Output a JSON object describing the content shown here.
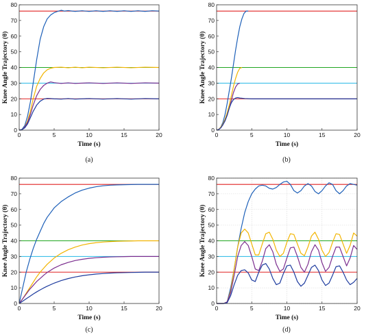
{
  "chart_data": [
    {
      "type": "line",
      "caption": "(a)",
      "xlabel": "Time (s)",
      "ylabel": "Knee Angle Trajectory (θ)",
      "xlim": [
        0,
        20
      ],
      "ylim": [
        0,
        80
      ],
      "xticks": [
        0,
        5,
        10,
        15,
        20
      ],
      "yticks": [
        0,
        10,
        20,
        30,
        40,
        50,
        60,
        70,
        80
      ],
      "grid": false,
      "reference_lines": [
        {
          "y": 76,
          "color": "#e02020"
        },
        {
          "y": 40,
          "color": "#1fa51f"
        },
        {
          "y": 30,
          "color": "#22b7e6"
        },
        {
          "y": 20,
          "color": "#e02020"
        }
      ],
      "series": [
        {
          "color": "#1c5fb8",
          "x": [
            0,
            0.4,
            0.8,
            1.2,
            1.6,
            2.0,
            2.5,
            3.0,
            3.5,
            4.0,
            4.5,
            5.0,
            5.5,
            6.0,
            6.5,
            7,
            8,
            9,
            10,
            11,
            12,
            13,
            14,
            15,
            16,
            17,
            18,
            19,
            20
          ],
          "y": [
            0,
            0.5,
            3,
            9,
            18,
            30,
            45,
            58,
            66,
            71,
            73.5,
            75,
            75.8,
            76.5,
            76,
            76.3,
            75.8,
            76.2,
            75.8,
            76.2,
            75.8,
            76.2,
            75.8,
            76.2,
            75.8,
            76.2,
            75.8,
            76.2,
            76
          ]
        },
        {
          "color": "#f2b400",
          "x": [
            0,
            0.4,
            0.8,
            1.2,
            1.6,
            2.0,
            2.5,
            3.0,
            3.5,
            4.0,
            4.5,
            5,
            6,
            7,
            8,
            9,
            10,
            12,
            14,
            16,
            18,
            20
          ],
          "y": [
            0,
            0.3,
            2,
            6,
            12,
            20,
            28,
            33,
            36.5,
            38.5,
            39.5,
            40,
            40.2,
            39.8,
            40.2,
            39.8,
            40.2,
            39.8,
            40.2,
            39.8,
            40.2,
            40
          ]
        },
        {
          "color": "#7b2d8e",
          "x": [
            0,
            0.4,
            0.8,
            1.2,
            1.6,
            2.0,
            2.5,
            3.0,
            3.5,
            4.0,
            4.5,
            5,
            6,
            7,
            8,
            10,
            12,
            14,
            16,
            18,
            20
          ],
          "y": [
            0,
            0.3,
            2,
            5,
            10,
            16,
            22,
            26,
            28.5,
            30,
            30.8,
            30.3,
            29.8,
            30.2,
            29.8,
            30.2,
            29.8,
            30.2,
            29.8,
            30.2,
            30
          ]
        },
        {
          "color": "#1c3a9e",
          "x": [
            0,
            0.4,
            0.8,
            1.2,
            1.6,
            2.0,
            2.5,
            3.0,
            3.5,
            4.0,
            4.5,
            5,
            6,
            7,
            8,
            10,
            12,
            14,
            16,
            18,
            20
          ],
          "y": [
            0,
            0.3,
            1.5,
            4,
            8,
            12,
            16,
            18.5,
            19.8,
            20.3,
            20.2,
            20,
            19.8,
            20.2,
            19.8,
            20.2,
            19.8,
            20.2,
            19.8,
            20.2,
            20
          ]
        }
      ]
    },
    {
      "type": "line",
      "caption": "(b)",
      "xlabel": "Time (s)",
      "ylabel": "Knee Angle Trajectory (θ)",
      "xlim": [
        0,
        20
      ],
      "ylim": [
        0,
        80
      ],
      "xticks": [
        0,
        5,
        10,
        15,
        20
      ],
      "yticks": [
        0,
        10,
        20,
        30,
        40,
        50,
        60,
        70,
        80
      ],
      "grid": false,
      "reference_lines": [
        {
          "y": 76,
          "color": "#e02020"
        },
        {
          "y": 40,
          "color": "#1fa51f"
        },
        {
          "y": 30,
          "color": "#22b7e6"
        },
        {
          "y": 20,
          "color": "#e02020"
        }
      ],
      "series": [
        {
          "color": "#1c5fb8",
          "x": [
            0,
            0.3,
            0.6,
            0.9,
            1.2,
            1.5,
            1.8,
            2.1,
            2.4,
            2.7,
            3.0,
            3.3,
            3.6,
            3.9,
            4.2,
            4.5
          ],
          "y": [
            0,
            0.5,
            2,
            5,
            10,
            17,
            25,
            33,
            42,
            51,
            59,
            66,
            71,
            74.5,
            76,
            76
          ]
        },
        {
          "color": "#f2b400",
          "x": [
            0,
            0.3,
            0.6,
            0.9,
            1.2,
            1.5,
            1.8,
            2.1,
            2.4,
            2.7,
            3.0,
            3.3,
            3.6
          ],
          "y": [
            0,
            0.5,
            2,
            4,
            7,
            11,
            16,
            22,
            28,
            33,
            37,
            39.5,
            40
          ]
        },
        {
          "color": "#7b2d8e",
          "x": [
            0,
            0.3,
            0.6,
            0.9,
            1.2,
            1.5,
            1.8,
            2.1,
            2.4,
            2.7,
            3.0,
            3.3
          ],
          "y": [
            0,
            0.4,
            1.5,
            3.5,
            6,
            9.5,
            14,
            19,
            24,
            27.5,
            29.5,
            30
          ]
        },
        {
          "color": "#1c3a9e",
          "x": [
            0,
            0.3,
            0.6,
            0.9,
            1.2,
            1.5,
            1.8,
            2.1,
            2.4,
            2.7,
            3.0,
            3.3,
            4,
            5,
            6,
            8,
            10,
            12,
            14,
            16,
            18,
            20
          ],
          "y": [
            0,
            0.4,
            1.5,
            3.5,
            6,
            9.5,
            14,
            17.5,
            19.5,
            20.5,
            20.8,
            20.5,
            20.2,
            20,
            20,
            20,
            20,
            20,
            20,
            20,
            20,
            20
          ]
        }
      ]
    },
    {
      "type": "line",
      "caption": "(c)",
      "xlabel": "Time (s)",
      "ylabel": "Knee Angle Trajectory (θ)",
      "xlim": [
        0,
        20
      ],
      "ylim": [
        0,
        80
      ],
      "xticks": [
        0,
        5,
        10,
        15,
        20
      ],
      "yticks": [
        0,
        10,
        20,
        30,
        40,
        50,
        60,
        70,
        80
      ],
      "grid": false,
      "reference_lines": [
        {
          "y": 76,
          "color": "#e02020"
        },
        {
          "y": 40,
          "color": "#1fa51f"
        },
        {
          "y": 30,
          "color": "#22b7e6"
        },
        {
          "y": 20,
          "color": "#e02020"
        }
      ],
      "series": [
        {
          "color": "#1c5fb8",
          "x": [
            0,
            0.5,
            1,
            1.5,
            2,
            2.5,
            3,
            3.5,
            4,
            5,
            6,
            7,
            8,
            9,
            10,
            11,
            12,
            13,
            14,
            15,
            16,
            17,
            18,
            19,
            20
          ],
          "y": [
            0,
            10,
            20,
            28,
            35,
            41,
            46,
            51,
            55,
            61,
            65,
            68,
            70.5,
            72.3,
            73.6,
            74.5,
            75.1,
            75.5,
            75.7,
            75.8,
            75.9,
            76,
            76,
            76,
            76
          ]
        },
        {
          "color": "#f2b400",
          "x": [
            0,
            0.5,
            1,
            1.5,
            2,
            2.5,
            3,
            3.5,
            4,
            5,
            6,
            7,
            8,
            9,
            10,
            11,
            12,
            13,
            14,
            15,
            16,
            17,
            18,
            19,
            20
          ],
          "y": [
            0,
            3,
            6.5,
            10,
            13.5,
            17,
            20,
            22.5,
            25,
            29,
            32,
            34.3,
            36,
            37.3,
            38.2,
            38.8,
            39.2,
            39.5,
            39.7,
            39.8,
            39.9,
            40,
            40,
            40,
            40
          ]
        },
        {
          "color": "#7b2d8e",
          "x": [
            0,
            0.5,
            1,
            1.5,
            2,
            2.5,
            3,
            3.5,
            4,
            5,
            6,
            7,
            8,
            9,
            10,
            11,
            12,
            13,
            14,
            15,
            16,
            17,
            18,
            19,
            20
          ],
          "y": [
            0,
            3,
            6,
            9,
            11.5,
            14,
            16,
            18,
            19.8,
            22.6,
            24.7,
            26.2,
            27.4,
            28.2,
            28.8,
            29.2,
            29.5,
            29.7,
            29.8,
            29.9,
            30,
            30,
            30,
            30,
            30
          ]
        },
        {
          "color": "#1c3a9e",
          "x": [
            0,
            0.5,
            1,
            1.5,
            2,
            2.5,
            3,
            3.5,
            4,
            5,
            6,
            7,
            8,
            9,
            10,
            11,
            12,
            13,
            14,
            15,
            16,
            17,
            18,
            19,
            20
          ],
          "y": [
            0,
            1.5,
            3,
            4.5,
            6,
            7.4,
            8.7,
            9.9,
            11,
            13,
            14.6,
            15.9,
            16.9,
            17.7,
            18.3,
            18.8,
            19.1,
            19.4,
            19.6,
            19.7,
            19.8,
            19.9,
            20,
            20,
            20
          ]
        }
      ]
    },
    {
      "type": "line",
      "caption": "(d)",
      "xlabel": "Time (s)",
      "ylabel": "Knee Angle Trajectory (θ)",
      "xlim": [
        0,
        20
      ],
      "ylim": [
        0,
        80
      ],
      "xticks": [
        0,
        5,
        10,
        15,
        20
      ],
      "yticks": [
        0,
        10,
        20,
        30,
        40,
        50,
        60,
        70,
        80
      ],
      "grid": true,
      "reference_lines": [
        {
          "y": 76,
          "color": "#e02020"
        },
        {
          "y": 40,
          "color": "#1fa51f"
        },
        {
          "y": 30,
          "color": "#22b7e6"
        },
        {
          "y": 20,
          "color": "#e02020"
        }
      ],
      "series": [
        {
          "color": "#1c5fb8",
          "x": [
            0,
            1,
            1.5,
            2,
            2.5,
            3,
            3.5,
            4,
            4.5,
            5,
            5.5,
            6,
            6.5,
            7,
            7.5,
            8,
            8.5,
            9,
            9.5,
            10,
            10.5,
            11,
            11.5,
            12,
            12.5,
            13,
            13.5,
            14,
            14.5,
            15,
            15.5,
            16,
            16.5,
            17,
            17.5,
            18,
            18.5,
            19,
            19.5,
            20
          ],
          "y": [
            0,
            0,
            1,
            10,
            22,
            36,
            48,
            58,
            65,
            70,
            73,
            75,
            75.5,
            75,
            73.5,
            73,
            74,
            76,
            77.5,
            78,
            76,
            72,
            70.5,
            72,
            75,
            76.5,
            75,
            71.5,
            70,
            72,
            75,
            77,
            76,
            72,
            70,
            72,
            75,
            76.5,
            76,
            75.5
          ]
        },
        {
          "color": "#f2b400",
          "x": [
            0,
            1,
            1.5,
            2,
            2.5,
            3,
            3.5,
            4,
            4.5,
            5,
            5.5,
            6,
            6.5,
            7,
            7.5,
            8,
            8.5,
            9,
            9.5,
            10,
            10.5,
            11,
            11.5,
            12,
            12.5,
            13,
            13.5,
            14,
            14.5,
            15,
            15.5,
            16,
            16.5,
            17,
            17.5,
            18,
            18.5,
            19,
            19.5,
            20
          ],
          "y": [
            0,
            0,
            1,
            8,
            22,
            36,
            45,
            47.5,
            45,
            38,
            31,
            31,
            38,
            44.5,
            45.5,
            41,
            34,
            30,
            32,
            39,
            44.5,
            44,
            38,
            32,
            30.5,
            36,
            43,
            45.5,
            41,
            34,
            30,
            32.5,
            39,
            44.5,
            44,
            38,
            32,
            37,
            45,
            43
          ]
        },
        {
          "color": "#7b2d8e",
          "x": [
            0,
            1,
            1.5,
            2,
            2.5,
            3,
            3.5,
            4,
            4.5,
            5,
            5.5,
            6,
            6.5,
            7,
            7.5,
            8,
            8.5,
            9,
            9.5,
            10,
            10.5,
            11,
            11.5,
            12,
            12.5,
            13,
            13.5,
            14,
            14.5,
            15,
            15.5,
            16,
            16.5,
            17,
            17.5,
            18,
            18.5,
            19,
            19.5,
            20
          ],
          "y": [
            0,
            0,
            1,
            7,
            18,
            30,
            37,
            39.5,
            37,
            30,
            22,
            21,
            27,
            35,
            37.5,
            33,
            25,
            20.5,
            22,
            29,
            35.5,
            36,
            30,
            23,
            20,
            25,
            33,
            37.5,
            34,
            26,
            20.5,
            23,
            30,
            36,
            36,
            30,
            24,
            29,
            37,
            34.5
          ]
        },
        {
          "color": "#1c3a9e",
          "x": [
            0,
            1,
            1.5,
            2,
            2.5,
            3,
            3.5,
            4,
            4.5,
            5,
            5.5,
            6,
            6.5,
            7,
            7.5,
            8,
            8.5,
            9,
            9.5,
            10,
            10.5,
            11,
            11.5,
            12,
            12.5,
            13,
            13.5,
            14,
            14.5,
            15,
            15.5,
            16,
            16.5,
            17,
            17.5,
            18,
            18.5,
            19,
            19.5,
            20
          ],
          "y": [
            0,
            0,
            0.5,
            5,
            12,
            18,
            21,
            21.5,
            19.5,
            15,
            14,
            20,
            24.5,
            25.5,
            22,
            16,
            12,
            13,
            19,
            24,
            24.5,
            20,
            14,
            11,
            13,
            18,
            23,
            24.5,
            21,
            15,
            11.5,
            13,
            18,
            23.5,
            24,
            20,
            15,
            12,
            13.5,
            16
          ]
        }
      ]
    }
  ]
}
